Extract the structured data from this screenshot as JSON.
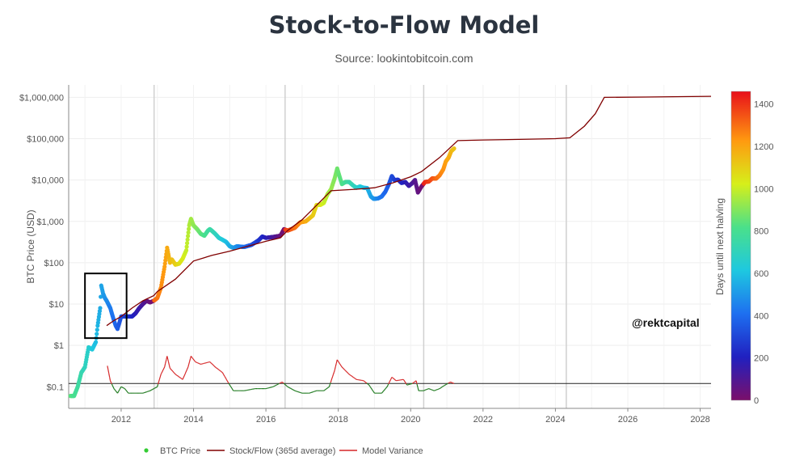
{
  "chart_data": {
    "type": "scatter",
    "title": "Stock-to-Flow Model",
    "subtitle": "Source: lookintobitcoin.com",
    "watermark": "@rektcapital",
    "ylabel": "BTC Price (USD)",
    "y_scale": "log",
    "ylim": [
      0.03,
      2000000
    ],
    "xlim": [
      2010.55,
      2028.3
    ],
    "x_ticks": [
      {
        "value": 2012,
        "label": "2012"
      },
      {
        "value": 2014,
        "label": "2014"
      },
      {
        "value": 2016,
        "label": "2016"
      },
      {
        "value": 2018,
        "label": "2018"
      },
      {
        "value": 2020,
        "label": "2020"
      },
      {
        "value": 2022,
        "label": "2022"
      },
      {
        "value": 2024,
        "label": "2024"
      },
      {
        "value": 2026,
        "label": "2026"
      },
      {
        "value": 2028,
        "label": "2028"
      }
    ],
    "y_ticks": [
      {
        "value": 0.1,
        "label": "$0.1"
      },
      {
        "value": 1,
        "label": "$1"
      },
      {
        "value": 10,
        "label": "$10"
      },
      {
        "value": 100,
        "label": "$100"
      },
      {
        "value": 1000,
        "label": "$1,000"
      },
      {
        "value": 10000,
        "label": "$10,000"
      },
      {
        "value": 100000,
        "label": "$100,000"
      },
      {
        "value": 1000000,
        "label": "$1,000,000"
      }
    ],
    "reference_line_y": 0.12,
    "grid": true,
    "colorbar": {
      "label": "Days until next halving",
      "range": [
        0,
        1460
      ],
      "ticks": [
        0,
        200,
        400,
        600,
        800,
        1000,
        1200,
        1400
      ]
    },
    "halvings": [
      2012.91,
      2016.53,
      2020.36,
      2024.3
    ],
    "highlight_box": {
      "x": [
        2011.0,
        2012.15
      ],
      "y": [
        1.5,
        55
      ]
    },
    "legend": [
      {
        "name": "BTC Price",
        "color": "#33cc33",
        "marker": "dot"
      },
      {
        "name": "Stock/Flow (365d average)",
        "color": "#800000",
        "marker": "line"
      },
      {
        "name": "Model Variance",
        "color": "#d62728",
        "marker": "line"
      }
    ],
    "series": [
      {
        "name": "BTC Price",
        "points": [
          [
            2010.6,
            0.06
          ],
          [
            2010.7,
            0.06
          ],
          [
            2010.8,
            0.1
          ],
          [
            2010.9,
            0.22
          ],
          [
            2011.0,
            0.3
          ],
          [
            2011.1,
            0.9
          ],
          [
            2011.2,
            0.8
          ],
          [
            2011.3,
            1.2
          ],
          [
            2011.35,
            3
          ],
          [
            2011.42,
            8
          ],
          [
            2011.45,
            28
          ],
          [
            2011.5,
            18
          ],
          [
            2011.55,
            14
          ],
          [
            2011.6,
            12
          ],
          [
            2011.7,
            8
          ],
          [
            2011.8,
            4
          ],
          [
            2011.85,
            3
          ],
          [
            2011.9,
            2.5
          ],
          [
            2011.95,
            3.5
          ],
          [
            2012.0,
            5
          ],
          [
            2012.1,
            5
          ],
          [
            2012.2,
            5
          ],
          [
            2012.3,
            5
          ],
          [
            2012.4,
            6
          ],
          [
            2012.5,
            8
          ],
          [
            2012.6,
            10
          ],
          [
            2012.7,
            12
          ],
          [
            2012.8,
            11
          ],
          [
            2012.9,
            12
          ],
          [
            2013.0,
            14
          ],
          [
            2013.1,
            25
          ],
          [
            2013.2,
            80
          ],
          [
            2013.27,
            230
          ],
          [
            2013.35,
            100
          ],
          [
            2013.4,
            120
          ],
          [
            2013.5,
            90
          ],
          [
            2013.6,
            95
          ],
          [
            2013.7,
            125
          ],
          [
            2013.8,
            200
          ],
          [
            2013.88,
            800
          ],
          [
            2013.93,
            1150
          ],
          [
            2014.0,
            800
          ],
          [
            2014.1,
            650
          ],
          [
            2014.2,
            500
          ],
          [
            2014.3,
            450
          ],
          [
            2014.4,
            600
          ],
          [
            2014.45,
            650
          ],
          [
            2014.5,
            600
          ],
          [
            2014.6,
            500
          ],
          [
            2014.7,
            400
          ],
          [
            2014.8,
            360
          ],
          [
            2014.9,
            320
          ],
          [
            2015.0,
            250
          ],
          [
            2015.1,
            230
          ],
          [
            2015.2,
            250
          ],
          [
            2015.4,
            240
          ],
          [
            2015.6,
            270
          ],
          [
            2015.8,
            350
          ],
          [
            2015.9,
            430
          ],
          [
            2016.0,
            400
          ],
          [
            2016.2,
            420
          ],
          [
            2016.4,
            450
          ],
          [
            2016.5,
            650
          ],
          [
            2016.6,
            600
          ],
          [
            2016.8,
            700
          ],
          [
            2016.95,
            950
          ],
          [
            2017.1,
            1000
          ],
          [
            2017.3,
            1400
          ],
          [
            2017.4,
            2500
          ],
          [
            2017.5,
            2500
          ],
          [
            2017.6,
            2800
          ],
          [
            2017.7,
            4500
          ],
          [
            2017.8,
            6000
          ],
          [
            2017.9,
            11000
          ],
          [
            2017.97,
            19000
          ],
          [
            2018.05,
            11000
          ],
          [
            2018.1,
            8000
          ],
          [
            2018.2,
            9000
          ],
          [
            2018.3,
            9000
          ],
          [
            2018.4,
            7500
          ],
          [
            2018.5,
            6500
          ],
          [
            2018.6,
            7000
          ],
          [
            2018.7,
            6500
          ],
          [
            2018.8,
            6400
          ],
          [
            2018.9,
            4000
          ],
          [
            2018.98,
            3500
          ],
          [
            2019.1,
            3600
          ],
          [
            2019.2,
            4000
          ],
          [
            2019.3,
            5200
          ],
          [
            2019.4,
            8000
          ],
          [
            2019.48,
            12500
          ],
          [
            2019.55,
            10000
          ],
          [
            2019.65,
            10200
          ],
          [
            2019.75,
            8500
          ],
          [
            2019.85,
            9000
          ],
          [
            2019.95,
            7200
          ],
          [
            2020.05,
            8500
          ],
          [
            2020.12,
            10000
          ],
          [
            2020.2,
            5000
          ],
          [
            2020.3,
            7000
          ],
          [
            2020.4,
            9000
          ],
          [
            2020.5,
            9200
          ],
          [
            2020.6,
            11000
          ],
          [
            2020.7,
            10800
          ],
          [
            2020.8,
            13000
          ],
          [
            2020.9,
            18000
          ],
          [
            2020.97,
            28000
          ],
          [
            2021.05,
            35000
          ],
          [
            2021.12,
            50000
          ],
          [
            2021.2,
            58000
          ]
        ]
      },
      {
        "name": "Stock/Flow (365d average)",
        "points": [
          [
            2011.6,
            3
          ],
          [
            2011.8,
            4
          ],
          [
            2012.0,
            5
          ],
          [
            2012.3,
            8
          ],
          [
            2012.6,
            12
          ],
          [
            2012.9,
            16
          ],
          [
            2013.0,
            20
          ],
          [
            2013.5,
            40
          ],
          [
            2014.0,
            110
          ],
          [
            2014.5,
            150
          ],
          [
            2015.0,
            190
          ],
          [
            2015.5,
            250
          ],
          [
            2016.0,
            330
          ],
          [
            2016.4,
            400
          ],
          [
            2016.6,
            600
          ],
          [
            2017.0,
            1100
          ],
          [
            2017.5,
            3000
          ],
          [
            2017.8,
            5500
          ],
          [
            2018.5,
            6000
          ],
          [
            2019.0,
            6500
          ],
          [
            2019.5,
            8500
          ],
          [
            2020.0,
            12000
          ],
          [
            2020.3,
            16000
          ],
          [
            2020.8,
            35000
          ],
          [
            2021.3,
            90000
          ],
          [
            2022.0,
            93000
          ],
          [
            2023.0,
            96000
          ],
          [
            2024.0,
            100000
          ],
          [
            2024.4,
            105000
          ],
          [
            2024.8,
            200000
          ],
          [
            2025.1,
            400000
          ],
          [
            2025.35,
            1000000
          ],
          [
            2026.5,
            1020000
          ],
          [
            2027.5,
            1040000
          ],
          [
            2028.3,
            1060000
          ]
        ]
      },
      {
        "name": "Model Variance",
        "points": [
          [
            2011.62,
            0.32
          ],
          [
            2011.7,
            0.14
          ],
          [
            2011.8,
            0.09
          ],
          [
            2011.9,
            0.07
          ],
          [
            2012.0,
            0.1
          ],
          [
            2012.1,
            0.09
          ],
          [
            2012.2,
            0.07
          ],
          [
            2012.4,
            0.07
          ],
          [
            2012.6,
            0.07
          ],
          [
            2012.8,
            0.08
          ],
          [
            2013.0,
            0.1
          ],
          [
            2013.1,
            0.2
          ],
          [
            2013.2,
            0.3
          ],
          [
            2013.27,
            0.55
          ],
          [
            2013.35,
            0.28
          ],
          [
            2013.5,
            0.2
          ],
          [
            2013.7,
            0.15
          ],
          [
            2013.85,
            0.3
          ],
          [
            2013.93,
            0.55
          ],
          [
            2014.05,
            0.4
          ],
          [
            2014.2,
            0.35
          ],
          [
            2014.45,
            0.4
          ],
          [
            2014.6,
            0.3
          ],
          [
            2014.8,
            0.22
          ],
          [
            2014.95,
            0.13
          ],
          [
            2015.1,
            0.08
          ],
          [
            2015.4,
            0.08
          ],
          [
            2015.7,
            0.09
          ],
          [
            2016.0,
            0.09
          ],
          [
            2016.2,
            0.1
          ],
          [
            2016.45,
            0.13
          ],
          [
            2016.6,
            0.1
          ],
          [
            2016.8,
            0.08
          ],
          [
            2017.0,
            0.07
          ],
          [
            2017.2,
            0.07
          ],
          [
            2017.4,
            0.08
          ],
          [
            2017.6,
            0.08
          ],
          [
            2017.75,
            0.1
          ],
          [
            2017.9,
            0.25
          ],
          [
            2017.97,
            0.45
          ],
          [
            2018.1,
            0.3
          ],
          [
            2018.3,
            0.2
          ],
          [
            2018.5,
            0.15
          ],
          [
            2018.7,
            0.14
          ],
          [
            2018.85,
            0.11
          ],
          [
            2019.0,
            0.07
          ],
          [
            2019.2,
            0.07
          ],
          [
            2019.35,
            0.1
          ],
          [
            2019.48,
            0.17
          ],
          [
            2019.6,
            0.14
          ],
          [
            2019.8,
            0.15
          ],
          [
            2019.9,
            0.11
          ],
          [
            2020.05,
            0.12
          ],
          [
            2020.15,
            0.14
          ],
          [
            2020.22,
            0.08
          ],
          [
            2020.35,
            0.08
          ],
          [
            2020.5,
            0.09
          ],
          [
            2020.65,
            0.08
          ],
          [
            2020.8,
            0.09
          ],
          [
            2020.95,
            0.11
          ],
          [
            2021.1,
            0.13
          ],
          [
            2021.2,
            0.12
          ]
        ]
      }
    ]
  }
}
